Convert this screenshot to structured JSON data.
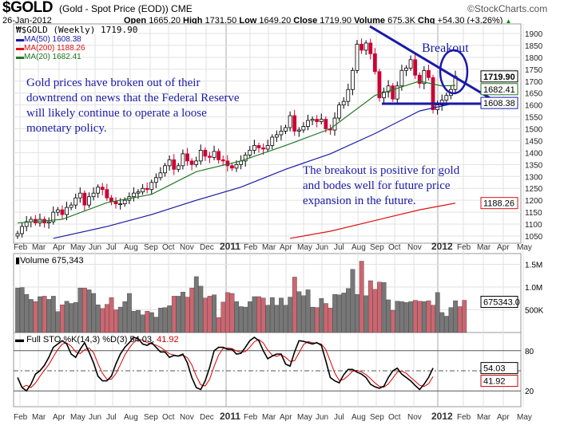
{
  "header": {
    "symbol": "$GOLD",
    "name": "(Gold - Spot Price (EOD))",
    "exchange": "CME",
    "brand": "©StockCharts.com",
    "date": "26-Jan-2012",
    "open_label": "Open",
    "open": "1665.20",
    "high_label": "High",
    "high": "1731.50",
    "low_label": "Low",
    "low": "1649.20",
    "close_label": "Close",
    "close": "1719.90",
    "volume_label": "Volume",
    "volume": "675.3K",
    "chg_label": "Chg",
    "chg": "+54.30 (+3.26%)"
  },
  "legend": {
    "main": "$GOLD (Weekly) 1719.90",
    "ma50": "MA(50) 1608.38",
    "ma200": "MA(200) 1188.26",
    "ma20": "MA(20) 1682.41",
    "volume": "Volume 675,343",
    "sto": "Full STO %K(14,3) %D(3) 54.03,",
    "sto_d": "41.92"
  },
  "price_tags": {
    "close": "1719.90",
    "ma20": "1682.41",
    "ma50": "1608.38",
    "ma200": "1188.26",
    "volume": "675343.0",
    "sto_k": "54.03",
    "sto_d": "41.92"
  },
  "annotations": {
    "breakout": "Breakout",
    "note1": "Gold prices have broken out of their downtrend on news that the Federal Reserve will likely continue to operate a loose monetary policy.",
    "note2": "The breakout is positive for gold and bodes well for future price expansion in the future."
  },
  "colors": {
    "up": "#ffffff",
    "down": "#cc0033",
    "ma50": "#1a1aa8",
    "ma200": "#dd1111",
    "ma20": "#227722",
    "vol_up": "#777777",
    "vol_down": "#cc6670",
    "annotation": "#1a1aa8"
  },
  "chart_data": {
    "type": "candlestick",
    "title": "$GOLD (Gold - Spot Price (EOD)) CME",
    "x_labels": [
      "Feb",
      "Mar",
      "Apr",
      "May",
      "Jun",
      "Jul",
      "Aug",
      "Sep",
      "Oct",
      "Nov",
      "Dec",
      "2011",
      "Feb",
      "Mar",
      "Apr",
      "May",
      "Jun",
      "Jul",
      "Aug",
      "Sep",
      "Oct",
      "Nov",
      "2012",
      "Feb",
      "Mar",
      "Apr",
      "May"
    ],
    "y_ticks": [
      1050,
      1100,
      1150,
      1200,
      1250,
      1300,
      1350,
      1400,
      1450,
      1500,
      1550,
      1600,
      1650,
      1700,
      1750,
      1800,
      1850,
      1900
    ],
    "ylim": [
      1030,
      1925
    ],
    "closes": [
      1060,
      1090,
      1110,
      1120,
      1105,
      1120,
      1105,
      1110,
      1150,
      1160,
      1140,
      1170,
      1180,
      1210,
      1230,
      1180,
      1215,
      1230,
      1255,
      1245,
      1210,
      1195,
      1185,
      1185,
      1200,
      1215,
      1230,
      1235,
      1250,
      1245,
      1275,
      1295,
      1315,
      1345,
      1370,
      1330,
      1345,
      1395,
      1365,
      1350,
      1365,
      1410,
      1385,
      1380,
      1405,
      1370,
      1365,
      1345,
      1335,
      1350,
      1365,
      1390,
      1410,
      1430,
      1420,
      1415,
      1430,
      1465,
      1475,
      1490,
      1505,
      1555,
      1490,
      1495,
      1510,
      1535,
      1540,
      1530,
      1540,
      1500,
      1495,
      1545,
      1600,
      1615,
      1665,
      1745,
      1855,
      1830,
      1860,
      1815,
      1740,
      1630,
      1655,
      1680,
      1625,
      1680,
      1745,
      1755,
      1790,
      1725,
      1690,
      1745,
      1715,
      1580,
      1600,
      1620,
      1640,
      1665,
      1720
    ],
    "ma20": [
      [
        0,
        1105
      ],
      [
        10,
        1120
      ],
      [
        20,
        1190
      ],
      [
        30,
        1225
      ],
      [
        40,
        1320
      ],
      [
        50,
        1365
      ],
      [
        60,
        1430
      ],
      [
        70,
        1500
      ],
      [
        80,
        1640
      ],
      [
        90,
        1700
      ],
      [
        95,
        1680
      ],
      [
        98,
        1682
      ]
    ],
    "ma50": [
      [
        8,
        1040
      ],
      [
        20,
        1090
      ],
      [
        30,
        1140
      ],
      [
        40,
        1200
      ],
      [
        50,
        1255
      ],
      [
        60,
        1330
      ],
      [
        70,
        1395
      ],
      [
        80,
        1480
      ],
      [
        90,
        1575
      ],
      [
        98,
        1608
      ]
    ],
    "ma200": [
      [
        61,
        1040
      ],
      [
        70,
        1070
      ],
      [
        80,
        1115
      ],
      [
        90,
        1160
      ],
      [
        98,
        1188
      ]
    ],
    "volume": {
      "ticks": [
        "1.5M",
        "1.0M",
        "500K"
      ],
      "values": [
        980,
        990,
        840,
        730,
        680,
        790,
        800,
        730,
        800,
        460,
        610,
        690,
        640,
        660,
        980,
        980,
        940,
        860,
        610,
        530,
        620,
        770,
        500,
        560,
        680,
        860,
        470,
        490,
        390,
        470,
        440,
        340,
        540,
        550,
        590,
        800,
        800,
        890,
        780,
        980,
        1230,
        1020,
        760,
        800,
        830,
        330,
        670,
        880,
        860,
        680,
        570,
        560,
        680,
        790,
        790,
        760,
        600,
        770,
        600,
        760,
        600,
        780,
        1220,
        900,
        810,
        940,
        560,
        550,
        750,
        640,
        540,
        840,
        830,
        870,
        970,
        1390,
        840,
        1570,
        810,
        1140,
        950,
        1110,
        1100,
        720,
        490,
        690,
        680,
        660,
        680,
        710,
        690,
        680,
        700,
        600,
        880,
        440,
        360,
        550,
        700,
        570,
        710
      ]
    },
    "stochastic": {
      "levels": [
        80,
        20
      ],
      "k": [
        40,
        25,
        20,
        30,
        45,
        50,
        58,
        70,
        85,
        90,
        95,
        90,
        75,
        70,
        82,
        92,
        78,
        62,
        42,
        35,
        35,
        42,
        60,
        75,
        85,
        92,
        100,
        98,
        90,
        88,
        92,
        85,
        78,
        78,
        70,
        73,
        72,
        75,
        62,
        40,
        25,
        22,
        35,
        55,
        80,
        85,
        85,
        82,
        82,
        75,
        76,
        85,
        95,
        100,
        95,
        80,
        68,
        72,
        75,
        75,
        60,
        57,
        78,
        95,
        94,
        92,
        90,
        92,
        88,
        65,
        40,
        35,
        32,
        44,
        52,
        52,
        48,
        45,
        40,
        30,
        26,
        24,
        27,
        40,
        50,
        54,
        45,
        40,
        35,
        28,
        22,
        30,
        40,
        54
      ]
    }
  }
}
